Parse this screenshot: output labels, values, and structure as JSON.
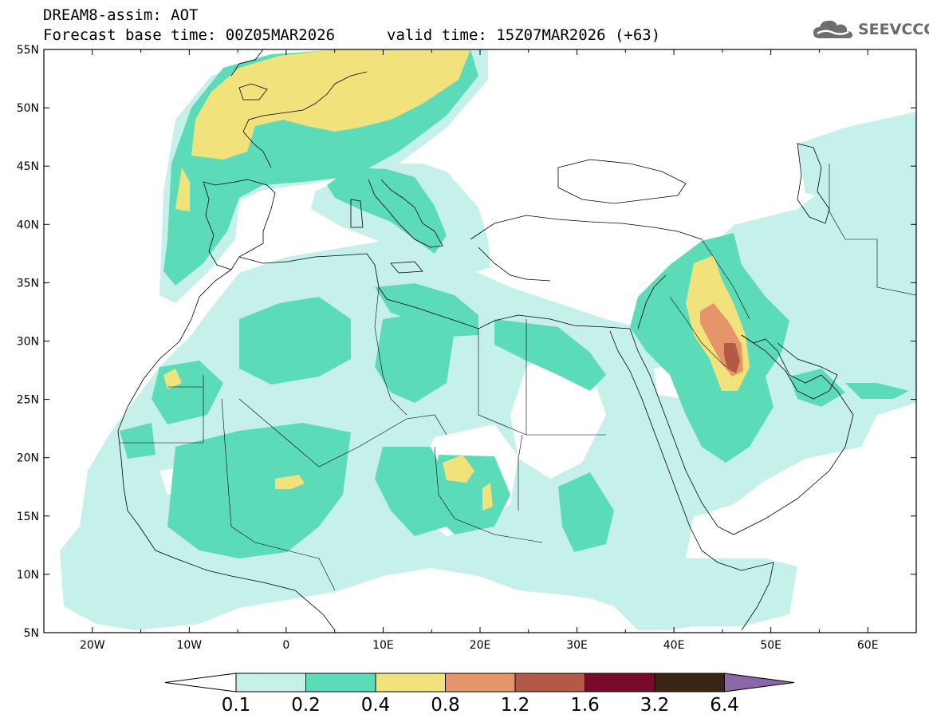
{
  "header": {
    "title": "DREAM8-assim: AOT",
    "base_time": "Forecast base time: 00Z05MAR2026",
    "valid_time": "valid time: 15Z07MAR2026 (+63)"
  },
  "logo": {
    "text": "SEEVCCC",
    "icon": "cloud-icon"
  },
  "map": {
    "lat_labels": [
      "55N",
      "50N",
      "45N",
      "40N",
      "35N",
      "30N",
      "25N",
      "20N",
      "15N",
      "10N",
      "5N"
    ],
    "lon_labels": [
      "20W",
      "10W",
      "0",
      "10E",
      "20E",
      "30E",
      "40E",
      "50E",
      "60E"
    ],
    "lon_range": [
      -25,
      65
    ],
    "lat_range": [
      5,
      55
    ]
  },
  "colorbar": {
    "levels": [
      "0.1",
      "0.2",
      "0.4",
      "0.8",
      "1.2",
      "1.6",
      "3.2",
      "6.4"
    ],
    "colors": [
      "#c6f0ea",
      "#5cdbb9",
      "#f2e27c",
      "#e6946a",
      "#b25a45",
      "#7a0a2a",
      "#3a2514",
      "#8a67a8"
    ],
    "under_color": "#ffffff"
  }
}
